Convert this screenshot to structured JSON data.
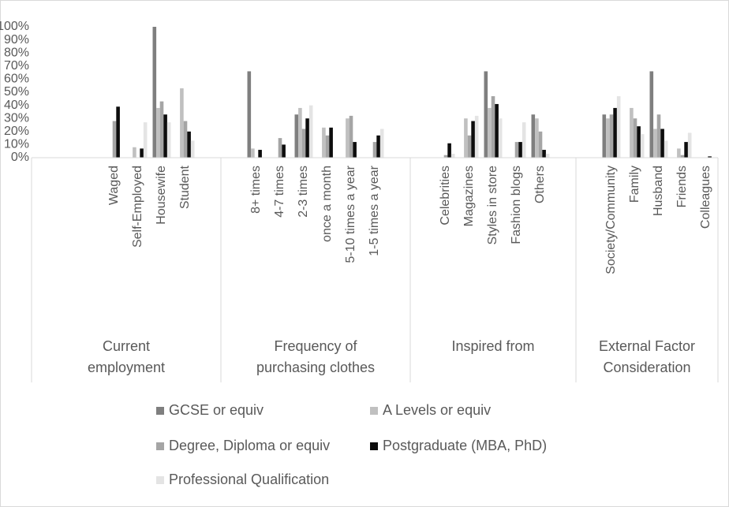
{
  "chart_data": {
    "type": "bar",
    "groups": [
      {
        "label": [
          "Current",
          "employment"
        ],
        "categories": [
          null,
          null,
          null,
          "Waged",
          "Self-Employed",
          "Housewife",
          "Student",
          null
        ]
      },
      {
        "label": [
          "Frequency of",
          "purchasing clothes"
        ],
        "categories": [
          null,
          "8+ times",
          "4-7 times",
          "2-3 times",
          "once a month",
          "5-10 times a year",
          "1-5 times a year",
          null
        ]
      },
      {
        "label": [
          "Inspired from"
        ],
        "categories": [
          null,
          "Celebrities",
          "Magazines",
          "Styles in store",
          "Fashion blogs",
          "Others",
          null
        ]
      },
      {
        "label": [
          "External Factor",
          "Consideration"
        ],
        "categories": [
          null,
          "Society/Community",
          "Family",
          "Husband",
          "Friends",
          "Colleagues"
        ]
      }
    ],
    "series": [
      {
        "name": "GCSE or equiv",
        "color": "#7f7f7f",
        "values": [
          null,
          null,
          null,
          0,
          0,
          100,
          0,
          null,
          null,
          66,
          0,
          33,
          0,
          0,
          0,
          null,
          null,
          0,
          0,
          66,
          0,
          33,
          null,
          null,
          33,
          0,
          66,
          0,
          0
        ]
      },
      {
        "name": "A Levels or equiv",
        "color": "#c0c0c0",
        "values": [
          null,
          null,
          null,
          0,
          8,
          38,
          53,
          null,
          null,
          7,
          0,
          38,
          23,
          30,
          0,
          null,
          null,
          0,
          30,
          38,
          0,
          30,
          null,
          null,
          30,
          38,
          22,
          7,
          0
        ]
      },
      {
        "name": "Degree, Diploma or equiv",
        "color": "#a5a5a5",
        "values": [
          null,
          null,
          null,
          28,
          0,
          43,
          28,
          null,
          null,
          0,
          15,
          22,
          17,
          32,
          12,
          null,
          null,
          2,
          17,
          47,
          12,
          20,
          null,
          null,
          33,
          30,
          33,
          2,
          0
        ]
      },
      {
        "name": "Postgraduate (MBA, PhD)",
        "color": "#0d0d0d",
        "values": [
          null,
          null,
          null,
          39,
          7,
          33,
          20,
          null,
          null,
          6,
          10,
          30,
          23,
          12,
          17,
          null,
          null,
          11,
          28,
          41,
          12,
          6,
          null,
          null,
          38,
          24,
          22,
          12,
          1
        ]
      },
      {
        "name": "Professional Qualification",
        "color": "#e4e4e4",
        "values": [
          null,
          null,
          null,
          0,
          27,
          27,
          13,
          null,
          null,
          0,
          0,
          40,
          0,
          0,
          22,
          null,
          null,
          3,
          32,
          30,
          27,
          3,
          null,
          null,
          47,
          18,
          13,
          19,
          0
        ]
      }
    ],
    "ylim": [
      0,
      100
    ],
    "yticks": [
      {
        "value": 0,
        "label": "0%"
      },
      {
        "value": 10,
        "label": "10%"
      },
      {
        "value": 20,
        "label": "20%"
      },
      {
        "value": 30,
        "label": "30%"
      },
      {
        "value": 40,
        "label": "40%"
      },
      {
        "value": 50,
        "label": "50%"
      },
      {
        "value": 60,
        "label": "60%"
      },
      {
        "value": 70,
        "label": "70%"
      },
      {
        "value": 80,
        "label": "80%"
      },
      {
        "value": 90,
        "label": "90%"
      },
      {
        "value": 100,
        "label": "100%"
      }
    ],
    "grid": false,
    "legend": "bottom"
  }
}
